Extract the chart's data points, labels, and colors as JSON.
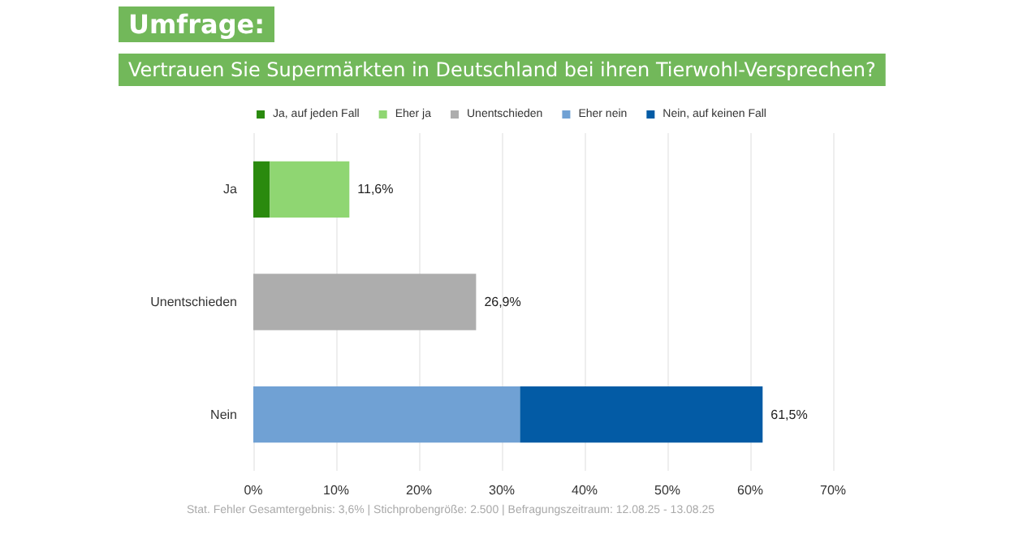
{
  "chart_data": {
    "type": "bar",
    "orientation": "horizontal",
    "stacked": true,
    "title": "Umfrage:",
    "subtitle": "Vertrauen Sie Supermärkten in Deutschland bei ihren Tierwohl-Versprechen?",
    "categories": [
      "Ja",
      "Unentschieden",
      "Nein"
    ],
    "series": [
      {
        "name": "Ja, auf jeden Fall",
        "color": "#2a8a0e",
        "values": [
          2.0,
          null,
          null
        ]
      },
      {
        "name": "Eher ja",
        "color": "#8fd672",
        "values": [
          9.6,
          null,
          null
        ]
      },
      {
        "name": "Unentschieden",
        "color": "#adadad",
        "values": [
          null,
          26.9,
          null
        ]
      },
      {
        "name": "Eher nein",
        "color": "#70a1d4",
        "values": [
          null,
          null,
          32.2
        ]
      },
      {
        "name": "Nein, auf keinen Fall",
        "color": "#035ba5",
        "values": [
          null,
          null,
          29.3
        ]
      }
    ],
    "totals": [
      "11,6%",
      "26,9%",
      "61,5%"
    ],
    "xlim": [
      0,
      70
    ],
    "xticks": [
      {
        "value": 0,
        "label": "0%"
      },
      {
        "value": 10,
        "label": "10%"
      },
      {
        "value": 20,
        "label": "20%"
      },
      {
        "value": 30,
        "label": "30%"
      },
      {
        "value": 40,
        "label": "40%"
      },
      {
        "value": 50,
        "label": "50%"
      },
      {
        "value": 60,
        "label": "60%"
      },
      {
        "value": 70,
        "label": "70%"
      }
    ],
    "grid": "x",
    "legend": "top",
    "annotations": [
      "Stat. Fehler Gesamtergebnis: 3,6% | Stichprobengröße: 2.500 | Befragungszeitraum: 12.08.25 - 13.08.25"
    ]
  }
}
